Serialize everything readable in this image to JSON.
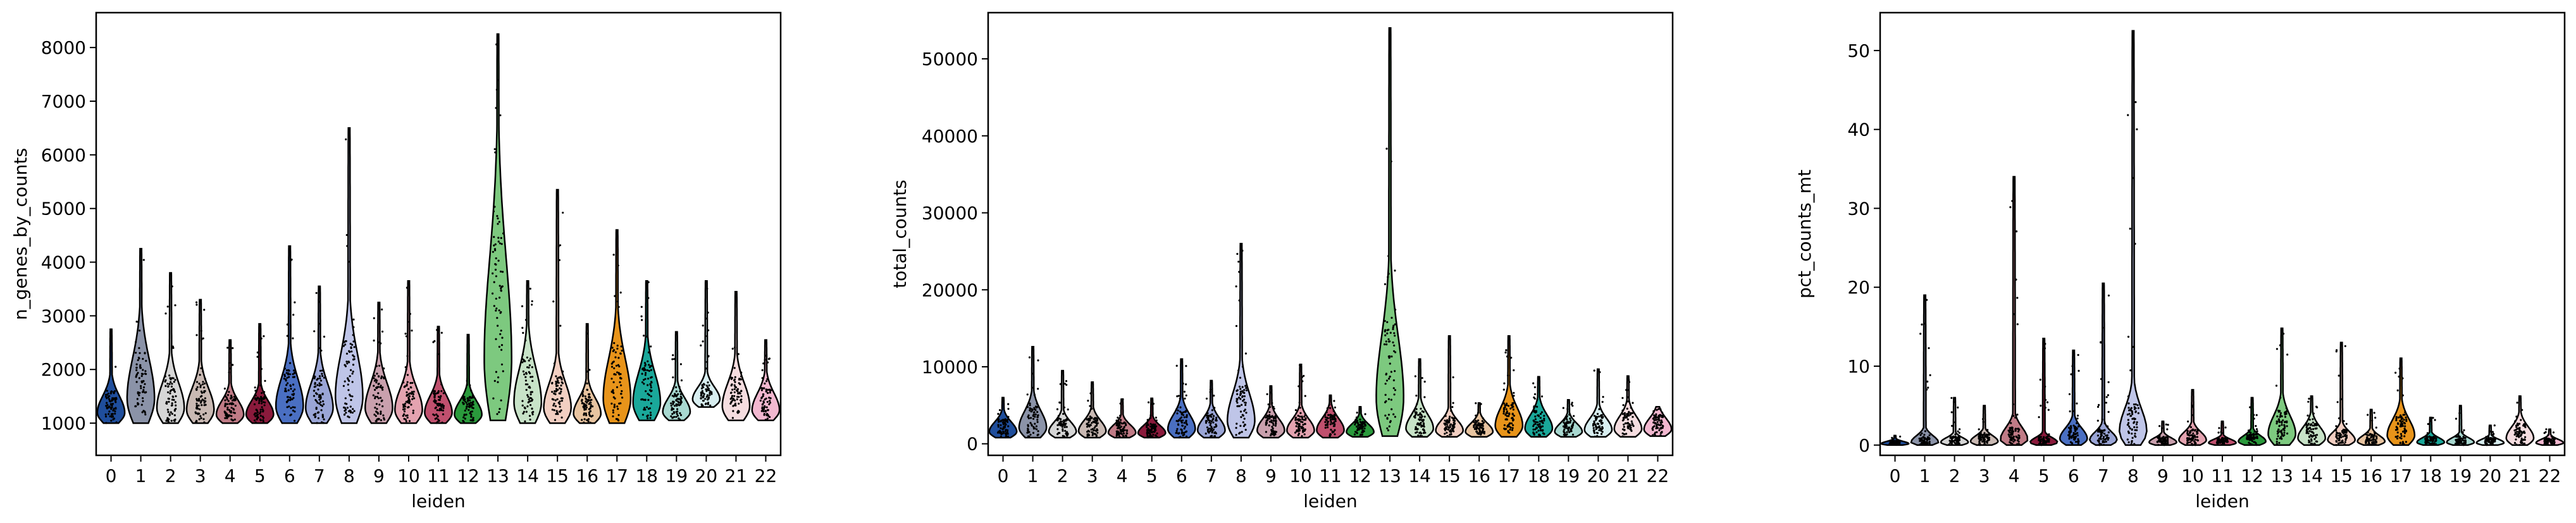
{
  "chart_data": [
    {
      "type": "violin",
      "xlabel": "leiden",
      "ylabel": "n_genes_by_counts",
      "categories": [
        "0",
        "1",
        "2",
        "3",
        "4",
        "5",
        "6",
        "7",
        "8",
        "9",
        "10",
        "11",
        "12",
        "13",
        "14",
        "15",
        "16",
        "17",
        "18",
        "19",
        "20",
        "21",
        "22"
      ],
      "yticks": [
        1000,
        2000,
        3000,
        4000,
        5000,
        6000,
        7000,
        8000
      ],
      "ylim": [
        400,
        8650
      ],
      "colors": [
        "#1f4e9c",
        "#8b93a8",
        "#d6d6d6",
        "#c9b9b3",
        "#c07b86",
        "#8b1a3c",
        "#4a6fc2",
        "#9aa5d6",
        "#bfc5e8",
        "#c9a0ad",
        "#e4a3b0",
        "#c0506e",
        "#2a9a3c",
        "#7dc97f",
        "#c8e3c8",
        "#f2cfc2",
        "#e8c4a0",
        "#e8941a",
        "#1aa89a",
        "#a8d8d0",
        "#d8eef0",
        "#f5dde0",
        "#f2b8d0"
      ],
      "min": [
        1000,
        1000,
        1000,
        1000,
        1000,
        1000,
        1000,
        1000,
        1000,
        1000,
        1000,
        1000,
        1000,
        1050,
        1000,
        1000,
        1000,
        1000,
        1050,
        1050,
        1300,
        1050,
        1050
      ],
      "max": [
        2750,
        4250,
        3800,
        3300,
        2550,
        2850,
        4300,
        3550,
        6500,
        3250,
        3650,
        2800,
        2650,
        8250,
        3650,
        5350,
        2850,
        4600,
        3650,
        2700,
        3650,
        3450,
        2550
      ],
      "bulk": [
        1550,
        2300,
        1800,
        1700,
        1450,
        1450,
        1900,
        1800,
        2400,
        1800,
        1700,
        1550,
        1450,
        4300,
        2100,
        1800,
        1500,
        2300,
        2000,
        1500,
        1700,
        1800,
        1600
      ]
    },
    {
      "type": "violin",
      "xlabel": "leiden",
      "ylabel": "total_counts",
      "categories": [
        "0",
        "1",
        "2",
        "3",
        "4",
        "5",
        "6",
        "7",
        "8",
        "9",
        "10",
        "11",
        "12",
        "13",
        "14",
        "15",
        "16",
        "17",
        "18",
        "19",
        "20",
        "21",
        "22"
      ],
      "yticks": [
        0,
        10000,
        20000,
        30000,
        40000,
        50000
      ],
      "ylim": [
        -1500,
        56000
      ],
      "colors": [
        "#1f4e9c",
        "#8b93a8",
        "#d6d6d6",
        "#c9b9b3",
        "#c07b86",
        "#8b1a3c",
        "#4a6fc2",
        "#9aa5d6",
        "#bfc5e8",
        "#c9a0ad",
        "#e4a3b0",
        "#c0506e",
        "#2a9a3c",
        "#7dc97f",
        "#c8e3c8",
        "#f2cfc2",
        "#e8c4a0",
        "#e8941a",
        "#1aa89a",
        "#a8d8d0",
        "#d8eef0",
        "#f5dde0",
        "#f2b8d0"
      ],
      "min": [
        800,
        800,
        800,
        800,
        800,
        800,
        800,
        800,
        800,
        800,
        800,
        800,
        900,
        1000,
        900,
        900,
        900,
        900,
        900,
        900,
        900,
        900,
        1000
      ],
      "max": [
        6000,
        12600,
        9500,
        8000,
        5800,
        5900,
        11000,
        8200,
        26000,
        7500,
        10300,
        6300,
        4800,
        54000,
        11000,
        14000,
        5300,
        14000,
        8700,
        5700,
        9700,
        8800,
        4800
      ],
      "bulk": [
        3000,
        4500,
        3000,
        3200,
        2600,
        2500,
        4000,
        3500,
        7000,
        3400,
        3400,
        3500,
        2700,
        15000,
        4000,
        3200,
        2800,
        5000,
        4000,
        2800,
        3500,
        3800,
        3500
      ]
    },
    {
      "type": "violin",
      "xlabel": "leiden",
      "ylabel": "pct_counts_mt",
      "categories": [
        "0",
        "1",
        "2",
        "3",
        "4",
        "5",
        "6",
        "7",
        "8",
        "9",
        "10",
        "11",
        "12",
        "13",
        "14",
        "15",
        "16",
        "17",
        "18",
        "19",
        "20",
        "21",
        "22"
      ],
      "yticks": [
        0,
        10,
        20,
        30,
        40,
        50
      ],
      "ylim": [
        -1.3,
        54.8
      ],
      "colors": [
        "#1f4e9c",
        "#8b93a8",
        "#d6d6d6",
        "#c9b9b3",
        "#c07b86",
        "#8b1a3c",
        "#4a6fc2",
        "#9aa5d6",
        "#bfc5e8",
        "#c9a0ad",
        "#e4a3b0",
        "#c0506e",
        "#2a9a3c",
        "#7dc97f",
        "#c8e3c8",
        "#f2cfc2",
        "#e8c4a0",
        "#e8941a",
        "#1aa89a",
        "#a8d8d0",
        "#d8eef0",
        "#f5dde0",
        "#f2b8d0"
      ],
      "min": [
        0,
        0,
        0,
        0,
        0,
        0,
        0,
        0,
        0,
        0,
        0,
        0,
        0,
        0,
        0,
        0,
        0,
        0,
        0,
        0,
        0,
        0,
        0
      ],
      "max": [
        1.2,
        19,
        6,
        5,
        34,
        13.5,
        12,
        20.5,
        52.5,
        3,
        7,
        3,
        6,
        14.8,
        6.2,
        13,
        4.5,
        11,
        3.5,
        5,
        2.5,
        6.2,
        2
      ],
      "bulk": [
        0.5,
        1.0,
        1.0,
        1.3,
        2.0,
        1.0,
        2.3,
        1.8,
        5.0,
        1.0,
        1.8,
        0.8,
        1.3,
        4.0,
        2.5,
        1.8,
        1.3,
        3.5,
        1.0,
        1.0,
        0.8,
        2.5,
        0.8
      ]
    }
  ]
}
